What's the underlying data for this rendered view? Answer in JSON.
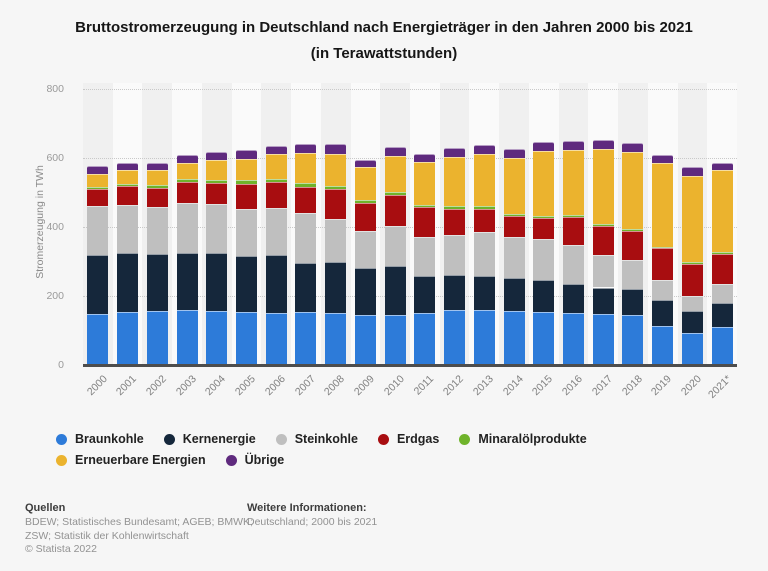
{
  "title": "Bruttostromerzeugung in Deutschland nach Energieträger in den Jahren 2000 bis 2021 (in Terawattstunden)",
  "chart_data": {
    "type": "bar",
    "stacked": true,
    "title": "Bruttostromerzeugung in Deutschland nach Energieträger in den Jahren 2000 bis 2021 (in Terawattstunden)",
    "xlabel": "",
    "ylabel": "Stromerzeugung in TWh",
    "ylim": [
      0,
      800
    ],
    "yticks": [
      0,
      200,
      400,
      600,
      800
    ],
    "grid": "horizontal-dotted",
    "legend_position": "bottom",
    "categories": [
      "2000",
      "2001",
      "2002",
      "2003",
      "2004",
      "2005",
      "2006",
      "2007",
      "2008",
      "2009",
      "2010",
      "2011",
      "2012",
      "2013",
      "2014",
      "2015",
      "2016",
      "2017",
      "2018",
      "2019",
      "2020",
      "2021*"
    ],
    "series": [
      {
        "id": "braunkohle",
        "name": "Braunkohle",
        "color": "#2d7bd9",
        "values": [
          148.3,
          154.8,
          158.0,
          158.2,
          158.0,
          154.1,
          151.1,
          155.1,
          150.6,
          145.6,
          145.9,
          150.1,
          160.7,
          160.9,
          155.8,
          154.5,
          150.0,
          148.4,
          145.5,
          114.0,
          91.7,
          110.1
        ]
      },
      {
        "id": "kernenergie",
        "name": "Kernenergie",
        "color": "#15273b",
        "values": [
          169.6,
          171.3,
          164.8,
          165.1,
          167.1,
          163.0,
          167.4,
          140.5,
          148.5,
          134.9,
          140.6,
          108.0,
          99.5,
          97.3,
          97.1,
          91.8,
          84.6,
          76.3,
          76.0,
          75.1,
          64.4,
          69.1
        ]
      },
      {
        "id": "steinkohle",
        "name": "Steinkohle",
        "color": "#bfbfbf",
        "values": [
          143.1,
          138.4,
          134.6,
          146.5,
          142.1,
          134.1,
          137.9,
          145.1,
          124.6,
          107.9,
          117.0,
          112.4,
          116.4,
          127.3,
          118.6,
          117.7,
          112.2,
          92.9,
          83.2,
          57.5,
          42.8,
          54.3
        ]
      },
      {
        "id": "erdgas",
        "name": "Erdgas",
        "color": "#a80d10",
        "values": [
          49.2,
          55.5,
          56.3,
          61.5,
          61.4,
          72.7,
          73.4,
          75.9,
          86.7,
          80.9,
          89.3,
          86.1,
          76.4,
          67.5,
          61.1,
          62.0,
          81.3,
          86.7,
          83.4,
          91.3,
          94.7,
          89.3
        ]
      },
      {
        "id": "minaraloelprodukte",
        "name": "Minaralölprodukte",
        "color": "#6fb32a",
        "values": [
          5.9,
          6.1,
          7.4,
          8.9,
          8.5,
          12.0,
          10.5,
          9.7,
          9.2,
          10.1,
          8.7,
          7.2,
          7.6,
          7.2,
          5.7,
          6.2,
          5.8,
          5.6,
          5.2,
          4.8,
          4.2,
          4.6
        ]
      },
      {
        "id": "erneuerbare-energien",
        "name": "Erneuerbare Energien",
        "color": "#ebb32e",
        "values": [
          36.6,
          38.4,
          44.9,
          45.6,
          56.6,
          62.5,
          71.5,
          87.6,
          93.2,
          94.8,
          104.8,
          123.5,
          143.5,
          152.3,
          162.5,
          187.4,
          188.8,
          216.2,
          224.8,
          242.4,
          251.2,
          237.9
        ]
      },
      {
        "id": "uebrige",
        "name": "Übrige",
        "color": "#5f2a7e",
        "values": [
          23.9,
          21.0,
          21.0,
          22.8,
          23.4,
          24.2,
          24.5,
          26.4,
          27.0,
          21.5,
          26.6,
          25.5,
          25.3,
          25.7,
          26.0,
          27.3,
          27.3,
          27.2,
          25.8,
          24.3,
          25.0,
          20.0
        ]
      }
    ]
  },
  "footer": {
    "sources_title": "Quellen",
    "sources_line1": "BDEW; Statistisches Bundesamt; AGEB; BMWK;",
    "sources_line2": "ZSW; Statistik der Kohlenwirtschaft",
    "copyright": "© Statista 2022",
    "info_title": "Weitere Informationen:",
    "info_text": "Deutschland; 2000 bis 2021"
  }
}
